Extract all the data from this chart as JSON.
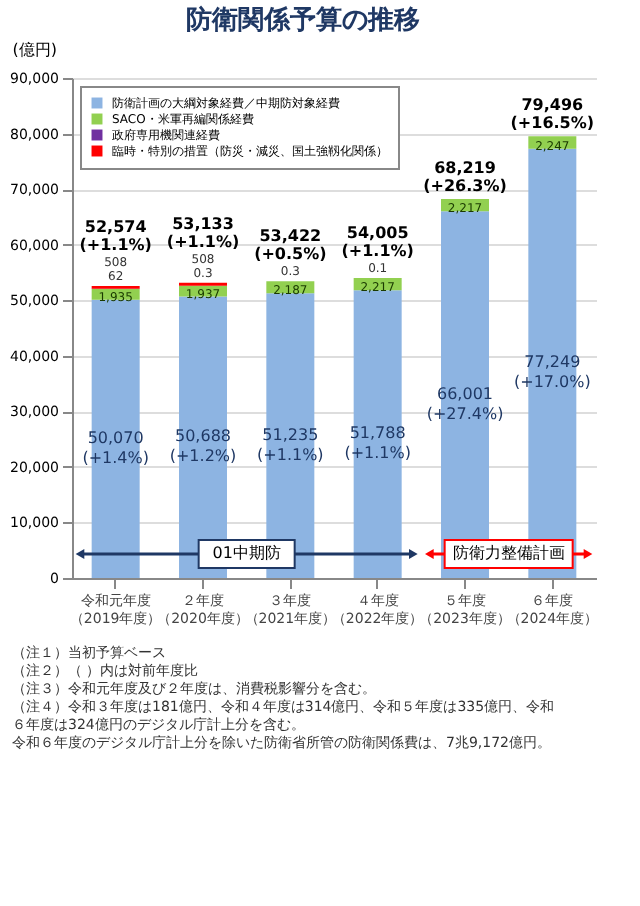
{
  "chart_data": {
    "type": "bar",
    "stacked": true,
    "title": "防衛関係予算の推移",
    "ylabel": "(億円)",
    "categories": [
      "令和元年度（2019年度）",
      "２年度（2020年度）",
      "３年度（2021年度）",
      "４年度（2022年度）",
      "５年度（2023年度）",
      "６年度（2024年度）"
    ],
    "series": [
      {
        "name": "防衛計画の大綱対象経費／中期防対象経費",
        "color": "#8db4e2",
        "values": [
          50070,
          50688,
          51235,
          51788,
          66001,
          77249
        ],
        "value_labels": [
          "50,070\n(+1.4%)",
          "50,688\n(+1.2%)",
          "51,235\n(+1.1%)",
          "51,788\n(+1.1%)",
          "66,001\n(+27.4%)",
          "77,249\n(+17.0%)"
        ]
      },
      {
        "name": "SACO・米軍再編関係経費",
        "color": "#92d050",
        "values": [
          1935,
          1937,
          2187,
          2217,
          2217,
          2247
        ],
        "value_labels": [
          "1,935",
          "1,937",
          "2,187",
          "2,217",
          "2,217",
          "2,247"
        ]
      },
      {
        "name": "政府専用機関連経費",
        "color": "#7030a0",
        "values": [
          62,
          0.3,
          0.3,
          0.1,
          null,
          null
        ],
        "value_labels": [
          "62",
          "0.3",
          "0.3",
          "0.1",
          null,
          null
        ]
      },
      {
        "name": "臨時・特別の措置（防災・減災、国土強靱化関係）",
        "color": "#ff0000",
        "values": [
          508,
          508,
          null,
          null,
          null,
          null
        ],
        "value_labels": [
          "508",
          "508",
          null,
          null,
          null,
          null
        ]
      }
    ],
    "totals": [
      "52,574\n(+1.1%)",
      "53,133\n(+1.1%)",
      "53,422\n(+0.5%)",
      "54,005\n(+1.1%)",
      "68,219\n(+26.3%)",
      "79,496\n(+16.5%)"
    ],
    "ylim": [
      0,
      90000
    ],
    "yticks": [
      0,
      {
        "value": 10000,
        "label": "10,000"
      },
      {
        "value": 20000,
        "label": "20,000"
      },
      {
        "value": 30000,
        "label": "30,000"
      },
      {
        "value": 40000,
        "label": "40,000"
      },
      {
        "value": 50000,
        "label": "50,000"
      },
      {
        "value": 60000,
        "label": "60,000"
      },
      {
        "value": 70000,
        "label": "70,000"
      },
      {
        "value": 80000,
        "label": "80,000"
      },
      {
        "value": 90000,
        "label": "90,000"
      }
    ],
    "grid": "y",
    "legend": "top left",
    "annotations": [
      "01中期防",
      "防衛力整備計画",
      "（注１）当初予算ベース",
      "（注２）（ ）内は対前年度比",
      "（注３）令和元年度及び２年度は、消費税影響分を含む。",
      "（注４）令和３年度は181億円、令和４年度は314億円、令和５年度は335億円、令和６年度は324億円のデジタル庁計上分を含む。",
      "令和６年度のデジタル庁計上分を除いた防衛省所管の防衛関係費は、7兆9,172億円。"
    ]
  }
}
